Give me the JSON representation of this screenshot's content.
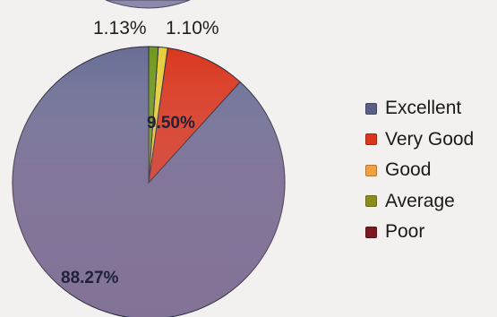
{
  "chart_data": {
    "type": "pie",
    "categories": [
      "Excellent",
      "Very Good",
      "Good",
      "Average",
      "Poor"
    ],
    "values": [
      88.27,
      9.5,
      1.1,
      1.13,
      0.0
    ],
    "labels": [
      "88.27%",
      "9.50%",
      "1.10%",
      "1.13%",
      ""
    ],
    "colors": [
      "#6a6e95",
      "#d9371e",
      "#e8cf3a",
      "#6f9a1c",
      "#8a1c22"
    ],
    "legend_position": "right",
    "start_angle_deg": -90,
    "direction": "counterclockwise"
  },
  "legend": [
    {
      "label": "Excellent",
      "color": "#5b5f85"
    },
    {
      "label": "Very Good",
      "color": "#d9371e"
    },
    {
      "label": "Good",
      "color": "#f0a042"
    },
    {
      "label": "Average",
      "color": "#8c8c1e"
    },
    {
      "label": "Poor",
      "color": "#7a1a20"
    }
  ]
}
